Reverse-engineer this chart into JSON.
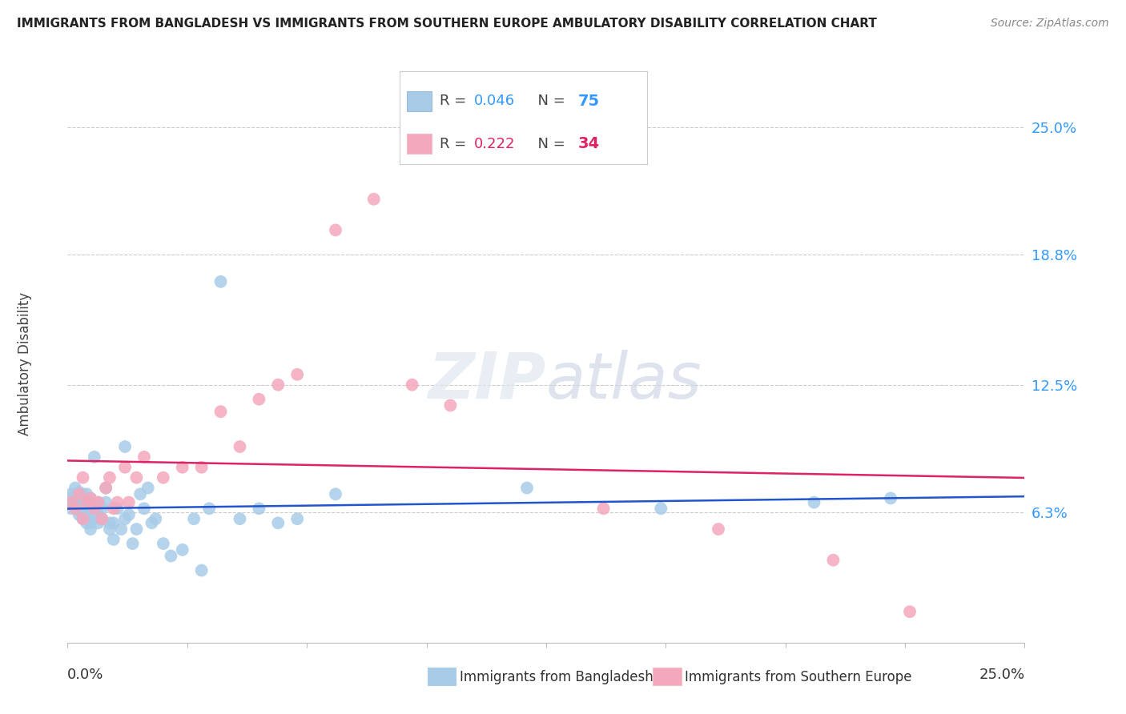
{
  "title": "IMMIGRANTS FROM BANGLADESH VS IMMIGRANTS FROM SOUTHERN EUROPE AMBULATORY DISABILITY CORRELATION CHART",
  "source": "Source: ZipAtlas.com",
  "ylabel": "Ambulatory Disability",
  "ytick_labels": [
    "25.0%",
    "18.8%",
    "12.5%",
    "6.3%"
  ],
  "ytick_values": [
    0.25,
    0.188,
    0.125,
    0.063
  ],
  "xlim": [
    0.0,
    0.25
  ],
  "ylim": [
    0.0,
    0.27
  ],
  "R_bangladesh": 0.046,
  "N_bangladesh": 75,
  "R_southern_europe": 0.222,
  "N_southern_europe": 34,
  "color_bangladesh": "#a8cce8",
  "color_southern_europe": "#f4a8bc",
  "line_color_bangladesh": "#2255cc",
  "line_color_southern_europe": "#dd2266",
  "bd_x": [
    0.001,
    0.001,
    0.001,
    0.001,
    0.002,
    0.002,
    0.002,
    0.002,
    0.002,
    0.003,
    0.003,
    0.003,
    0.003,
    0.003,
    0.003,
    0.004,
    0.004,
    0.004,
    0.004,
    0.004,
    0.004,
    0.005,
    0.005,
    0.005,
    0.005,
    0.005,
    0.005,
    0.006,
    0.006,
    0.006,
    0.006,
    0.006,
    0.007,
    0.007,
    0.007,
    0.007,
    0.008,
    0.008,
    0.008,
    0.009,
    0.009,
    0.01,
    0.01,
    0.011,
    0.011,
    0.012,
    0.012,
    0.013,
    0.014,
    0.015,
    0.015,
    0.016,
    0.017,
    0.018,
    0.019,
    0.02,
    0.021,
    0.022,
    0.023,
    0.025,
    0.027,
    0.03,
    0.033,
    0.035,
    0.037,
    0.04,
    0.045,
    0.05,
    0.055,
    0.06,
    0.07,
    0.12,
    0.155,
    0.195,
    0.215
  ],
  "bd_y": [
    0.068,
    0.07,
    0.072,
    0.065,
    0.066,
    0.068,
    0.07,
    0.072,
    0.075,
    0.062,
    0.064,
    0.066,
    0.068,
    0.07,
    0.073,
    0.06,
    0.062,
    0.065,
    0.068,
    0.07,
    0.072,
    0.058,
    0.06,
    0.063,
    0.065,
    0.068,
    0.072,
    0.055,
    0.058,
    0.062,
    0.065,
    0.07,
    0.06,
    0.062,
    0.065,
    0.09,
    0.058,
    0.062,
    0.068,
    0.06,
    0.065,
    0.068,
    0.075,
    0.055,
    0.058,
    0.05,
    0.058,
    0.065,
    0.055,
    0.06,
    0.095,
    0.062,
    0.048,
    0.055,
    0.072,
    0.065,
    0.075,
    0.058,
    0.06,
    0.048,
    0.042,
    0.045,
    0.06,
    0.035,
    0.065,
    0.175,
    0.06,
    0.065,
    0.058,
    0.06,
    0.072,
    0.075,
    0.065,
    0.068,
    0.07
  ],
  "se_x": [
    0.001,
    0.002,
    0.003,
    0.004,
    0.004,
    0.005,
    0.006,
    0.007,
    0.008,
    0.009,
    0.01,
    0.011,
    0.012,
    0.013,
    0.015,
    0.016,
    0.018,
    0.02,
    0.025,
    0.03,
    0.035,
    0.04,
    0.045,
    0.05,
    0.055,
    0.06,
    0.07,
    0.08,
    0.09,
    0.1,
    0.14,
    0.17,
    0.2,
    0.22
  ],
  "se_y": [
    0.068,
    0.065,
    0.072,
    0.06,
    0.08,
    0.068,
    0.07,
    0.065,
    0.068,
    0.06,
    0.075,
    0.08,
    0.065,
    0.068,
    0.085,
    0.068,
    0.08,
    0.09,
    0.08,
    0.085,
    0.085,
    0.112,
    0.095,
    0.118,
    0.125,
    0.13,
    0.2,
    0.215,
    0.125,
    0.115,
    0.065,
    0.055,
    0.04,
    0.015
  ]
}
